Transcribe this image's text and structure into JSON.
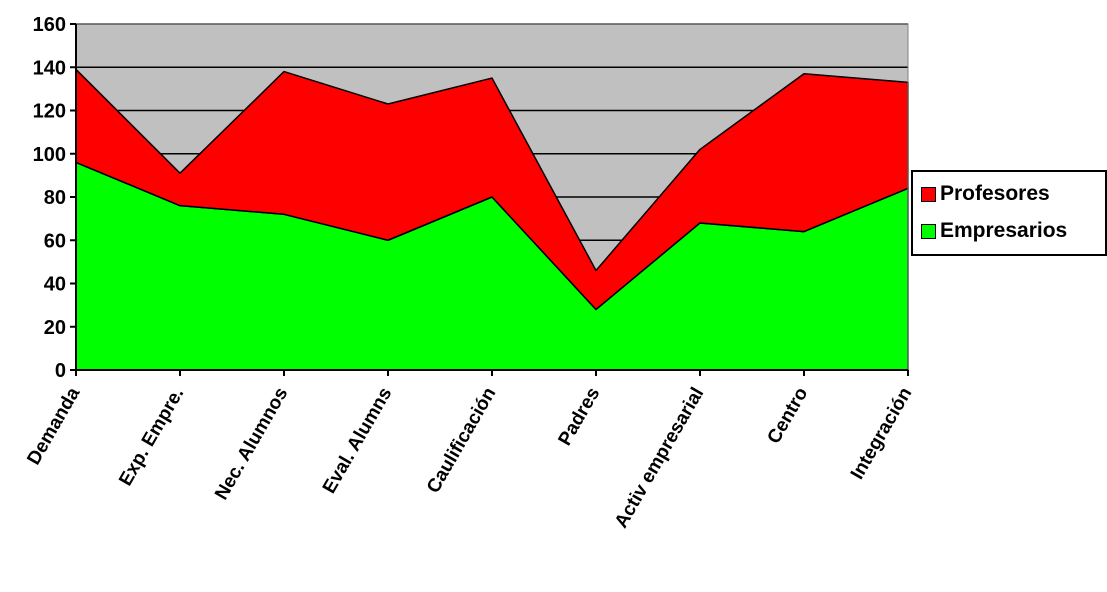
{
  "chart_data": {
    "type": "area",
    "stacked": true,
    "categories": [
      "Demanda",
      "Exp. Empre.",
      "Nec. Alumnos",
      "Eval. Alumns",
      "Caulificación",
      "Padres",
      "Activ empresarial",
      "Centro",
      "Integración"
    ],
    "series": [
      {
        "name": "Empresarios",
        "color": "#00ff00",
        "values": [
          96,
          76,
          72,
          60,
          80,
          28,
          68,
          64,
          84
        ]
      },
      {
        "name": "Profesores",
        "color": "#ff0000",
        "values": [
          43,
          15,
          66,
          63,
          55,
          18,
          34,
          73,
          49
        ]
      }
    ],
    "ylim": [
      0,
      160
    ],
    "yticks": [
      0,
      20,
      40,
      60,
      80,
      100,
      120,
      140,
      160
    ],
    "ytick_labels": [
      "0",
      "20",
      "40",
      "60",
      "80",
      "100",
      "120",
      "140",
      "160"
    ],
    "plot_background": "#c0c0c0",
    "grid": true,
    "legend_position": "right",
    "legend": [
      "Profesores",
      "Empresarios"
    ]
  }
}
